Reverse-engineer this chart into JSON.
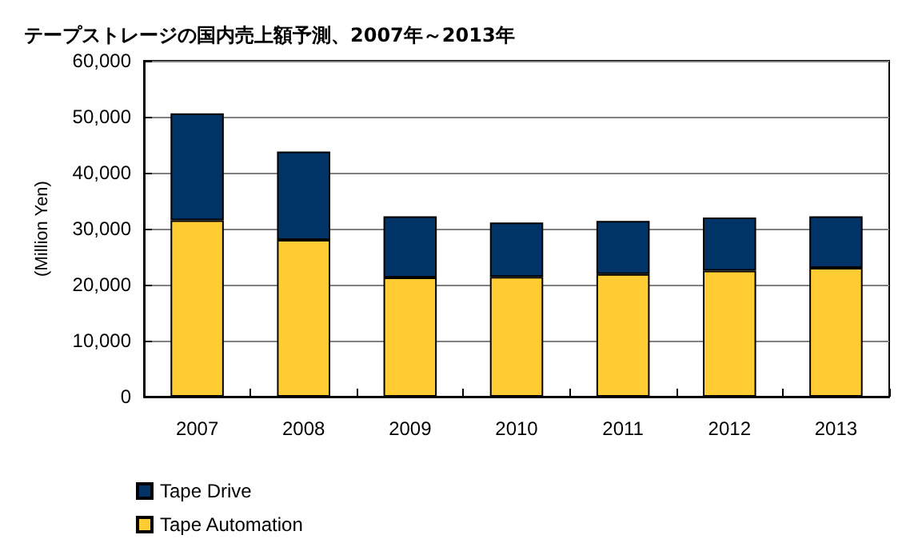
{
  "chart_data": {
    "type": "bar",
    "title": "テープストレージの国内売上額予測、2007年～2013年",
    "ylabel": "(Million Yen)",
    "categories": [
      "2007",
      "2008",
      "2009",
      "2010",
      "2011",
      "2012",
      "2013"
    ],
    "stacked": true,
    "series": [
      {
        "name": "Tape Automation",
        "color": "#ffcc33",
        "values": [
          31500,
          28000,
          21300,
          21400,
          21900,
          22500,
          23000
        ]
      },
      {
        "name": "Tape Drive",
        "color": "#003366",
        "values": [
          19100,
          15800,
          10900,
          9700,
          9500,
          9500,
          9200
        ]
      }
    ],
    "ylim": [
      0,
      60000
    ],
    "yticks": [
      0,
      {
        "value": 10000,
        "label": "10,000"
      },
      {
        "value": 20000,
        "label": "20,000"
      },
      {
        "value": 30000,
        "label": "30,000"
      },
      {
        "value": 40000,
        "label": "40,000"
      },
      {
        "value": 50000,
        "label": "50,000"
      },
      {
        "value": 60000,
        "label": "60,000"
      }
    ],
    "grid": "y",
    "legend": "bottom left"
  }
}
